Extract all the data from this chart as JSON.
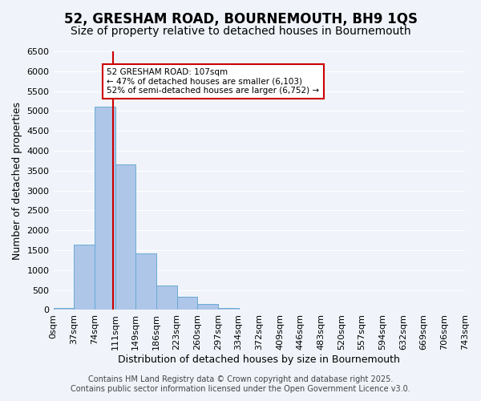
{
  "title": "52, GRESHAM ROAD, BOURNEMOUTH, BH9 1QS",
  "subtitle": "Size of property relative to detached houses in Bournemouth",
  "xlabel": "Distribution of detached houses by size in Bournemouth",
  "ylabel": "Number of detached properties",
  "bar_edges": [
    0,
    37,
    74,
    111,
    148,
    185,
    222,
    259,
    296,
    333,
    370,
    407,
    444,
    481,
    518,
    555,
    592,
    629,
    666,
    703,
    740
  ],
  "bar_heights": [
    50,
    1650,
    5100,
    3650,
    1430,
    620,
    330,
    160,
    50,
    0,
    0,
    0,
    0,
    0,
    0,
    0,
    0,
    0,
    0,
    0
  ],
  "tick_labels": [
    "0sqm",
    "37sqm",
    "74sqm",
    "111sqm",
    "149sqm",
    "186sqm",
    "223sqm",
    "260sqm",
    "297sqm",
    "334sqm",
    "372sqm",
    "409sqm",
    "446sqm",
    "483sqm",
    "520sqm",
    "557sqm",
    "594sqm",
    "632sqm",
    "669sqm",
    "706sqm",
    "743sqm"
  ],
  "bar_color": "#aec6e8",
  "bar_edgecolor": "#6aaad4",
  "property_line_x": 107,
  "property_line_color": "#cc0000",
  "annotation_box_text": "52 GRESHAM ROAD: 107sqm\n← 47% of detached houses are smaller (6,103)\n52% of semi-detached houses are larger (6,752) →",
  "ylim": [
    0,
    6500
  ],
  "yticks": [
    0,
    500,
    1000,
    1500,
    2000,
    2500,
    3000,
    3500,
    4000,
    4500,
    5000,
    5500,
    6000,
    6500
  ],
  "footer_line1": "Contains HM Land Registry data © Crown copyright and database right 2025.",
  "footer_line2": "Contains public sector information licensed under the Open Government Licence v3.0.",
  "bg_color": "#f0f4fa",
  "grid_color": "#ffffff",
  "title_fontsize": 12,
  "subtitle_fontsize": 10,
  "axis_label_fontsize": 9,
  "tick_fontsize": 8,
  "footer_fontsize": 7
}
